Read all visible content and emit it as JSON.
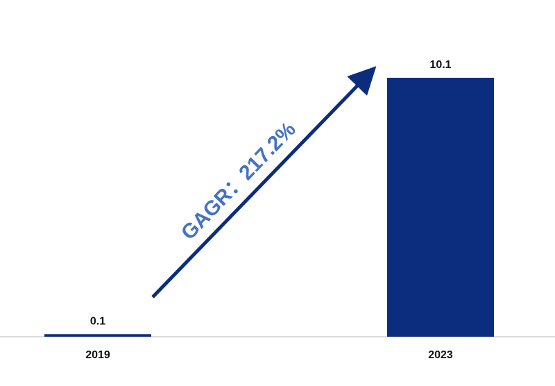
{
  "chart_data": {
    "type": "bar",
    "categories": [
      "2019",
      "2023"
    ],
    "values": [
      0.1,
      10.1
    ],
    "color": "#0c2c7d",
    "annotation": "GAGR：217.2%"
  }
}
